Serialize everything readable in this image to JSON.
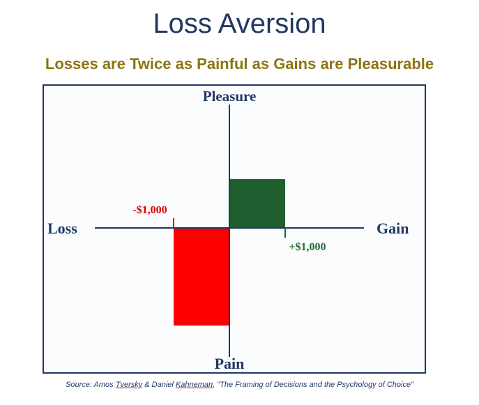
{
  "header": {
    "title": "Loss Aversion",
    "subtitle": "Losses are Twice as Painful as Gains are Pleasurable"
  },
  "footer": {
    "source_prefix": "Source: Amos ",
    "source_author1": "Tversky",
    "source_mid": " & Daniel ",
    "source_author2": "Kahneman",
    "source_suffix": ", \"The Framing of Decisions and the Psychology of Choice\""
  },
  "colors": {
    "title": "#1f3864",
    "subtitle": "#8c7512",
    "frame": "#1f3864",
    "gain_bar": "#1e5e2f",
    "loss_bar": "#ff0000",
    "loss_label": "#e00000",
    "gain_label": "#1e6b2f"
  },
  "chart_data": {
    "type": "bar",
    "axis_labels": {
      "left": "Loss",
      "right": "Gain",
      "top": "Pleasure",
      "bottom": "Pain"
    },
    "bars": [
      {
        "name": "gain",
        "x": 1000,
        "y": 1,
        "label": "+$1,000"
      },
      {
        "name": "loss",
        "x": -1000,
        "y": -2,
        "label": "-$1,000"
      }
    ],
    "xlim": [
      -2000,
      2000
    ],
    "ylim": [
      -2.2,
      2.1
    ],
    "grid": false
  }
}
